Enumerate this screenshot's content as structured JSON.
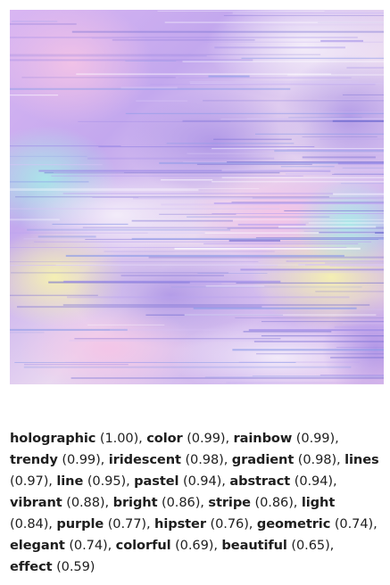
{
  "image": {
    "icon": "holographic-texture-image",
    "colors": [
      "#c9a6ee",
      "#a98be6",
      "#f2c8e8",
      "#f3f0b2",
      "#a9e8e8",
      "#d7d0f2"
    ]
  },
  "tags": [
    {
      "name": "holographic",
      "score": "(1.00)"
    },
    {
      "name": "color",
      "score": "(0.99)"
    },
    {
      "name": "rainbow",
      "score": "(0.99)"
    },
    {
      "name": "trendy",
      "score": "(0.99)"
    },
    {
      "name": "iridescent",
      "score": "(0.98)"
    },
    {
      "name": "gradient",
      "score": "(0.98)"
    },
    {
      "name": "lines",
      "score": "(0.97)"
    },
    {
      "name": "line",
      "score": "(0.95)"
    },
    {
      "name": "pastel",
      "score": "(0.94)"
    },
    {
      "name": "abstract",
      "score": "(0.94)"
    },
    {
      "name": "vibrant",
      "score": "(0.88)"
    },
    {
      "name": "bright",
      "score": "(0.86)"
    },
    {
      "name": "stripe",
      "score": "(0.86)"
    },
    {
      "name": "light",
      "score": "(0.84)"
    },
    {
      "name": "purple",
      "score": "(0.77)"
    },
    {
      "name": "hipster",
      "score": "(0.76)"
    },
    {
      "name": "geometric",
      "score": "(0.74)"
    },
    {
      "name": "elegant",
      "score": "(0.74)"
    },
    {
      "name": "colorful",
      "score": "(0.69)"
    },
    {
      "name": "beautiful",
      "score": "(0.65)"
    },
    {
      "name": "effect",
      "score": "(0.59)"
    }
  ]
}
